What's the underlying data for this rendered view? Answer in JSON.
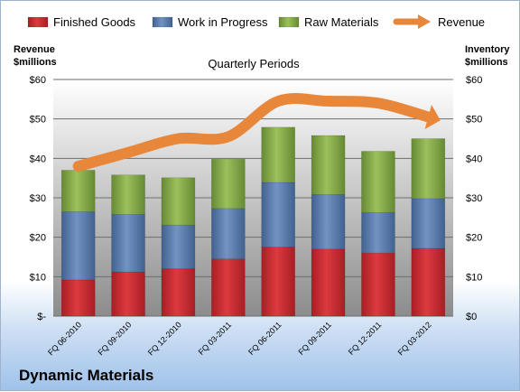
{
  "company": "Dynamic Materials",
  "chart_data": {
    "type": "bar",
    "stacked": true,
    "title": "Quarterly Periods",
    "ylabel_left": [
      "Revenue",
      "$millions"
    ],
    "ylabel_right": [
      "Inventory",
      "$millions"
    ],
    "categories": [
      "FQ 06-2010",
      "FQ 09-2010",
      "FQ 12-2010",
      "FQ 03-2011",
      "FQ 06-2011",
      "FQ 09-2011",
      "FQ 12-2011",
      "FQ 03-2012"
    ],
    "series": [
      {
        "name": "Finished Goods",
        "type": "bar",
        "color": "#c0272d",
        "values": [
          9.2,
          11.2,
          12.0,
          14.5,
          17.5,
          17.0,
          16.0,
          17.2
        ]
      },
      {
        "name": "Work in Progress",
        "type": "bar",
        "color": "#4f73a6",
        "values": [
          17.3,
          14.6,
          11.1,
          12.8,
          16.4,
          13.8,
          10.3,
          12.6
        ]
      },
      {
        "name": "Raw Materials",
        "type": "bar",
        "color": "#7ba23f",
        "values": [
          10.5,
          10.0,
          12.0,
          12.5,
          14.0,
          15.0,
          15.5,
          15.2
        ]
      },
      {
        "name": "Revenue",
        "type": "line",
        "color": "#e8863a",
        "values": [
          38.0,
          41.5,
          45.0,
          45.5,
          54.5,
          54.5,
          54.0,
          50.5
        ]
      }
    ],
    "ylim": [
      0,
      60
    ],
    "yticks_left": [
      "$-",
      "$10",
      "$20",
      "$30",
      "$40",
      "$50",
      "$60"
    ],
    "yticks_right": [
      "$0",
      "$10",
      "$20",
      "$30",
      "$40",
      "$50",
      "$60"
    ],
    "grid": true,
    "legend": "top",
    "plot_background": "gradient-gray"
  }
}
